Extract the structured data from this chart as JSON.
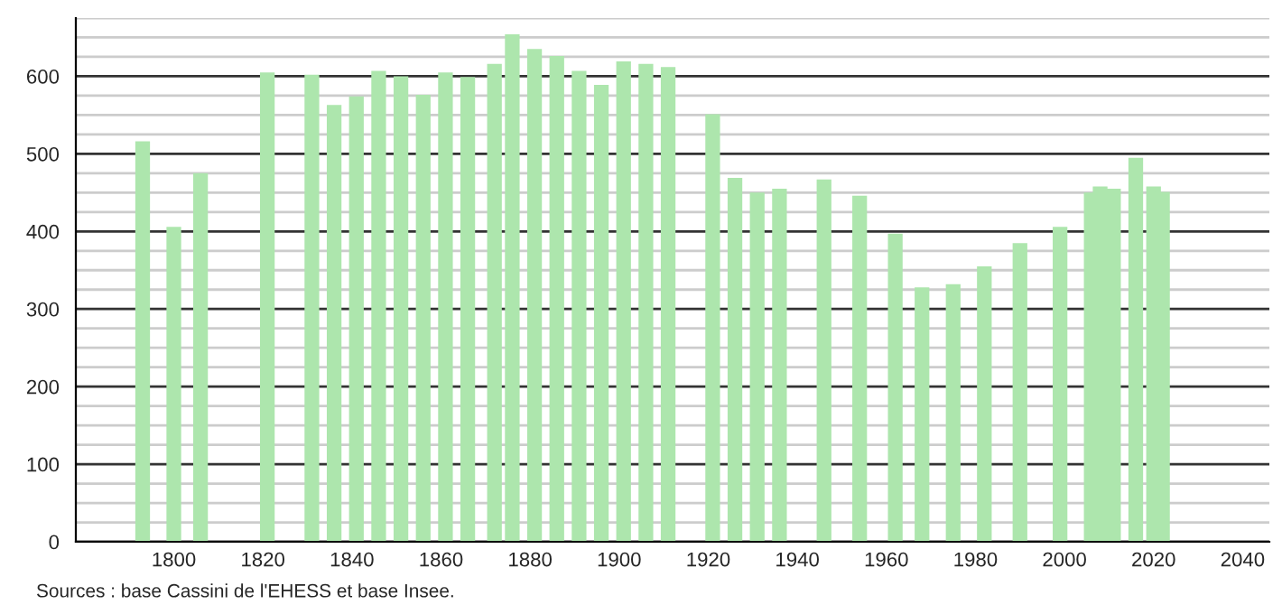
{
  "chart_data": {
    "type": "bar",
    "x": [
      1793,
      1800,
      1806,
      1821,
      1831,
      1836,
      1841,
      1846,
      1851,
      1856,
      1861,
      1866,
      1872,
      1876,
      1881,
      1886,
      1891,
      1896,
      1901,
      1906,
      1911,
      1921,
      1926,
      1931,
      1936,
      1946,
      1954,
      1962,
      1968,
      1975,
      1982,
      1990,
      1999,
      2006,
      2008,
      2011,
      2016,
      2020,
      2022
    ],
    "values": [
      516,
      406,
      475,
      605,
      602,
      563,
      574,
      607,
      600,
      576,
      605,
      599,
      616,
      654,
      635,
      626,
      607,
      589,
      619,
      616,
      612,
      551,
      469,
      450,
      455,
      467,
      446,
      397,
      328,
      332,
      355,
      385,
      406,
      450,
      458,
      455,
      495,
      458,
      451
    ],
    "color": "#ade6ad",
    "xlim": [
      1778,
      2046
    ],
    "xticks": [
      1800,
      1820,
      1840,
      1860,
      1880,
      1900,
      1920,
      1940,
      1960,
      1980,
      2000,
      2020,
      2040
    ],
    "ylim": [
      0,
      675
    ],
    "yticks": [
      0,
      {
        "value": 25,
        "label": null
      },
      {
        "value": 50,
        "label": null
      },
      {
        "value": 75,
        "label": null
      },
      100,
      {
        "value": 125,
        "label": null
      },
      {
        "value": 150,
        "label": null
      },
      {
        "value": 175,
        "label": null
      },
      200,
      {
        "value": 225,
        "label": null
      },
      {
        "value": 250,
        "label": null
      },
      {
        "value": 275,
        "label": null
      },
      300,
      {
        "value": 325,
        "label": null
      },
      {
        "value": 350,
        "label": null
      },
      {
        "value": 375,
        "label": null
      },
      400,
      {
        "value": 425,
        "label": null
      },
      {
        "value": 450,
        "label": null
      },
      {
        "value": 475,
        "label": null
      },
      500,
      {
        "value": 525,
        "label": null
      },
      {
        "value": 550,
        "label": null
      },
      {
        "value": 575,
        "label": null
      },
      600,
      {
        "value": 625,
        "label": null
      },
      {
        "value": 650,
        "label": null
      },
      {
        "value": 675,
        "label": null
      }
    ],
    "grid": "y",
    "annotations": [
      "Sources : base Cassini de l'EHESS et base Insee."
    ]
  }
}
